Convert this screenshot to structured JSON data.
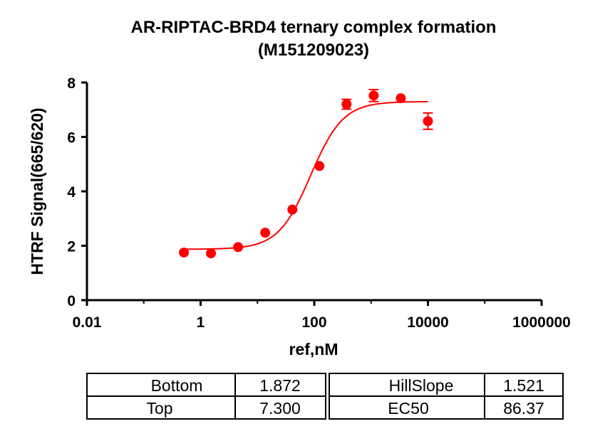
{
  "chart_data": {
    "type": "scatter",
    "title": "AR-RIPTAC-BRD4 ternary complex formation",
    "subtitle": "(M151209023)",
    "xlabel": "ref,nM",
    "ylabel": "HTRF Signal(665/620)",
    "xscale": "log",
    "xlim": [
      0.01,
      1000000
    ],
    "ylim": [
      0,
      8
    ],
    "xticks": [
      "0.01",
      "1",
      "100",
      "10000",
      "1000000"
    ],
    "xtick_values": [
      0.01,
      1,
      100,
      10000,
      1000000
    ],
    "yticks": [
      "0",
      "2",
      "4",
      "6",
      "8"
    ],
    "grid": false,
    "color": "#ff0000",
    "points": [
      {
        "x": 0.508,
        "y": 1.75,
        "err": 0.05
      },
      {
        "x": 1.52,
        "y": 1.72,
        "err": 0.05
      },
      {
        "x": 4.57,
        "y": 1.95,
        "err": 0.05
      },
      {
        "x": 13.7,
        "y": 2.48,
        "err": 0.05
      },
      {
        "x": 41.2,
        "y": 3.33,
        "err": 0.05
      },
      {
        "x": 123,
        "y": 4.93,
        "err": 0.05
      },
      {
        "x": 370,
        "y": 7.2,
        "err": 0.18
      },
      {
        "x": 1111,
        "y": 7.52,
        "err": 0.22
      },
      {
        "x": 3333,
        "y": 7.42,
        "err": 0.08
      },
      {
        "x": 10000,
        "y": 6.58,
        "err": 0.3
      }
    ],
    "fit": {
      "model": "4PL",
      "Bottom": 1.872,
      "Top": 7.3,
      "HillSlope": 1.521,
      "EC50": 86.37
    }
  },
  "table": {
    "rows": [
      {
        "label1": "Bottom",
        "value1": "1.872",
        "label2": "HillSlope",
        "value2": "1.521"
      },
      {
        "label1": "Top",
        "value1": "7.300",
        "label2": "EC50",
        "value2": "86.37"
      }
    ]
  }
}
